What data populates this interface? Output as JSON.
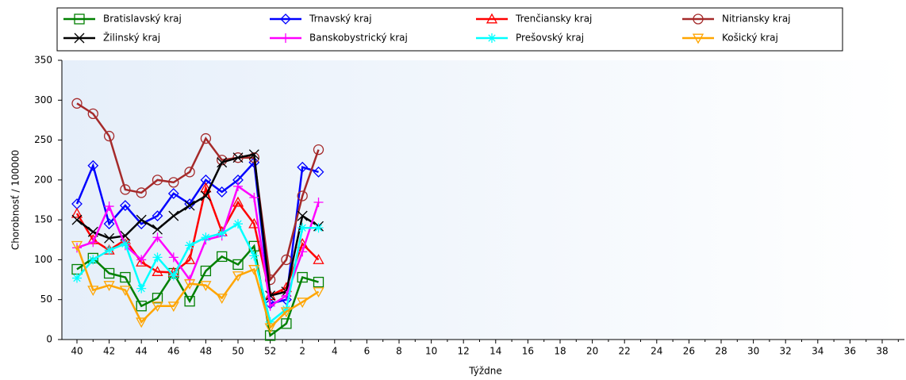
{
  "chart_data": {
    "type": "line",
    "y_label": "Chorobnosť / 100000",
    "x_label": "Týždne",
    "categories": [
      "40",
      null,
      "42",
      null,
      "44",
      null,
      "46",
      null,
      "48",
      null,
      "50",
      null,
      "52",
      null,
      "2",
      null,
      "4",
      null,
      "6",
      null,
      "8",
      null,
      "10",
      null,
      "12",
      null,
      "14",
      null,
      "16",
      null,
      "18",
      null,
      "20",
      null,
      "22",
      null,
      "24",
      null,
      "26",
      null,
      "28",
      null,
      "30",
      null,
      "32",
      null,
      "34",
      null,
      "36",
      null,
      "38",
      null
    ],
    "ylim": [
      0,
      350
    ],
    "yticks": [
      0,
      50,
      100,
      150,
      200,
      250,
      300,
      350
    ],
    "series": [
      {
        "name": "Bratislavský kraj",
        "color": "#008000",
        "marker": "square",
        "values": [
          88,
          102,
          83,
          78,
          42,
          52,
          83,
          48,
          86,
          104,
          94,
          117,
          5,
          20,
          78,
          72,
          null,
          null,
          null,
          null,
          null,
          null,
          null,
          null,
          null,
          null,
          null,
          null,
          null,
          null,
          null,
          null,
          null,
          null,
          null,
          null,
          null,
          null,
          null,
          null,
          null,
          null,
          null,
          null,
          null,
          null,
          null,
          null,
          null,
          null,
          null,
          null
        ]
      },
      {
        "name": "Trnavský kraj",
        "color": "#0000ff",
        "marker": "diamond",
        "values": [
          170,
          218,
          145,
          168,
          145,
          155,
          183,
          170,
          200,
          185,
          200,
          222,
          45,
          50,
          216,
          210,
          null,
          null,
          null,
          null,
          null,
          null,
          null,
          null,
          null,
          null,
          null,
          null,
          null,
          null,
          null,
          null,
          null,
          null,
          null,
          null,
          null,
          null,
          null,
          null,
          null,
          null,
          null,
          null,
          null,
          null,
          null,
          null,
          null,
          null,
          null,
          null
        ]
      },
      {
        "name": "Trenčiansky kraj",
        "color": "#ff0000",
        "marker": "triangle",
        "values": [
          158,
          125,
          112,
          125,
          97,
          85,
          84,
          100,
          190,
          135,
          172,
          145,
          55,
          65,
          120,
          100,
          null,
          null,
          null,
          null,
          null,
          null,
          null,
          null,
          null,
          null,
          null,
          null,
          null,
          null,
          null,
          null,
          null,
          null,
          null,
          null,
          null,
          null,
          null,
          null,
          null,
          null,
          null,
          null,
          null,
          null,
          null,
          null,
          null,
          null,
          null,
          null
        ]
      },
      {
        "name": "Nitriansky kraj",
        "color": "#a52a2a",
        "marker": "circle",
        "values": [
          296,
          283,
          255,
          188,
          184,
          200,
          197,
          210,
          252,
          225,
          228,
          228,
          75,
          100,
          180,
          238,
          null,
          null,
          null,
          null,
          null,
          null,
          null,
          null,
          null,
          null,
          null,
          null,
          null,
          null,
          null,
          null,
          null,
          null,
          null,
          null,
          null,
          null,
          null,
          null,
          null,
          null,
          null,
          null,
          null,
          null,
          null,
          null,
          null,
          null,
          null,
          null
        ]
      },
      {
        "name": "Žilinský kraj",
        "color": "#000000",
        "marker": "cross",
        "values": [
          150,
          135,
          127,
          130,
          150,
          138,
          155,
          168,
          180,
          222,
          228,
          232,
          55,
          60,
          155,
          142,
          null,
          null,
          null,
          null,
          null,
          null,
          null,
          null,
          null,
          null,
          null,
          null,
          null,
          null,
          null,
          null,
          null,
          null,
          null,
          null,
          null,
          null,
          null,
          null,
          null,
          null,
          null,
          null,
          null,
          null,
          null,
          null,
          null,
          null,
          null,
          null
        ]
      },
      {
        "name": "Banskobystrický kraj",
        "color": "#ff00ff",
        "marker": "plus",
        "values": [
          115,
          122,
          167,
          118,
          100,
          128,
          103,
          75,
          125,
          130,
          192,
          178,
          42,
          55,
          110,
          172,
          null,
          null,
          null,
          null,
          null,
          null,
          null,
          null,
          null,
          null,
          null,
          null,
          null,
          null,
          null,
          null,
          null,
          null,
          null,
          null,
          null,
          null,
          null,
          null,
          null,
          null,
          null,
          null,
          null,
          null,
          null,
          null,
          null,
          null,
          null,
          null
        ]
      },
      {
        "name": "Prešovský kraj",
        "color": "#00ffff",
        "marker": "star",
        "values": [
          77,
          100,
          112,
          120,
          64,
          103,
          80,
          118,
          128,
          133,
          145,
          105,
          22,
          38,
          140,
          140,
          null,
          null,
          null,
          null,
          null,
          null,
          null,
          null,
          null,
          null,
          null,
          null,
          null,
          null,
          null,
          null,
          null,
          null,
          null,
          null,
          null,
          null,
          null,
          null,
          null,
          null,
          null,
          null,
          null,
          null,
          null,
          null,
          null,
          null,
          null,
          null
        ]
      },
      {
        "name": "Košický kraj",
        "color": "#ffa500",
        "marker": "triangle-down",
        "values": [
          118,
          62,
          68,
          62,
          22,
          42,
          42,
          70,
          68,
          52,
          80,
          88,
          15,
          35,
          47,
          60,
          null,
          null,
          null,
          null,
          null,
          null,
          null,
          null,
          null,
          null,
          null,
          null,
          null,
          null,
          null,
          null,
          null,
          null,
          null,
          null,
          null,
          null,
          null,
          null,
          null,
          null,
          null,
          null,
          null,
          null,
          null,
          null,
          null,
          null,
          null,
          null
        ]
      }
    ]
  }
}
